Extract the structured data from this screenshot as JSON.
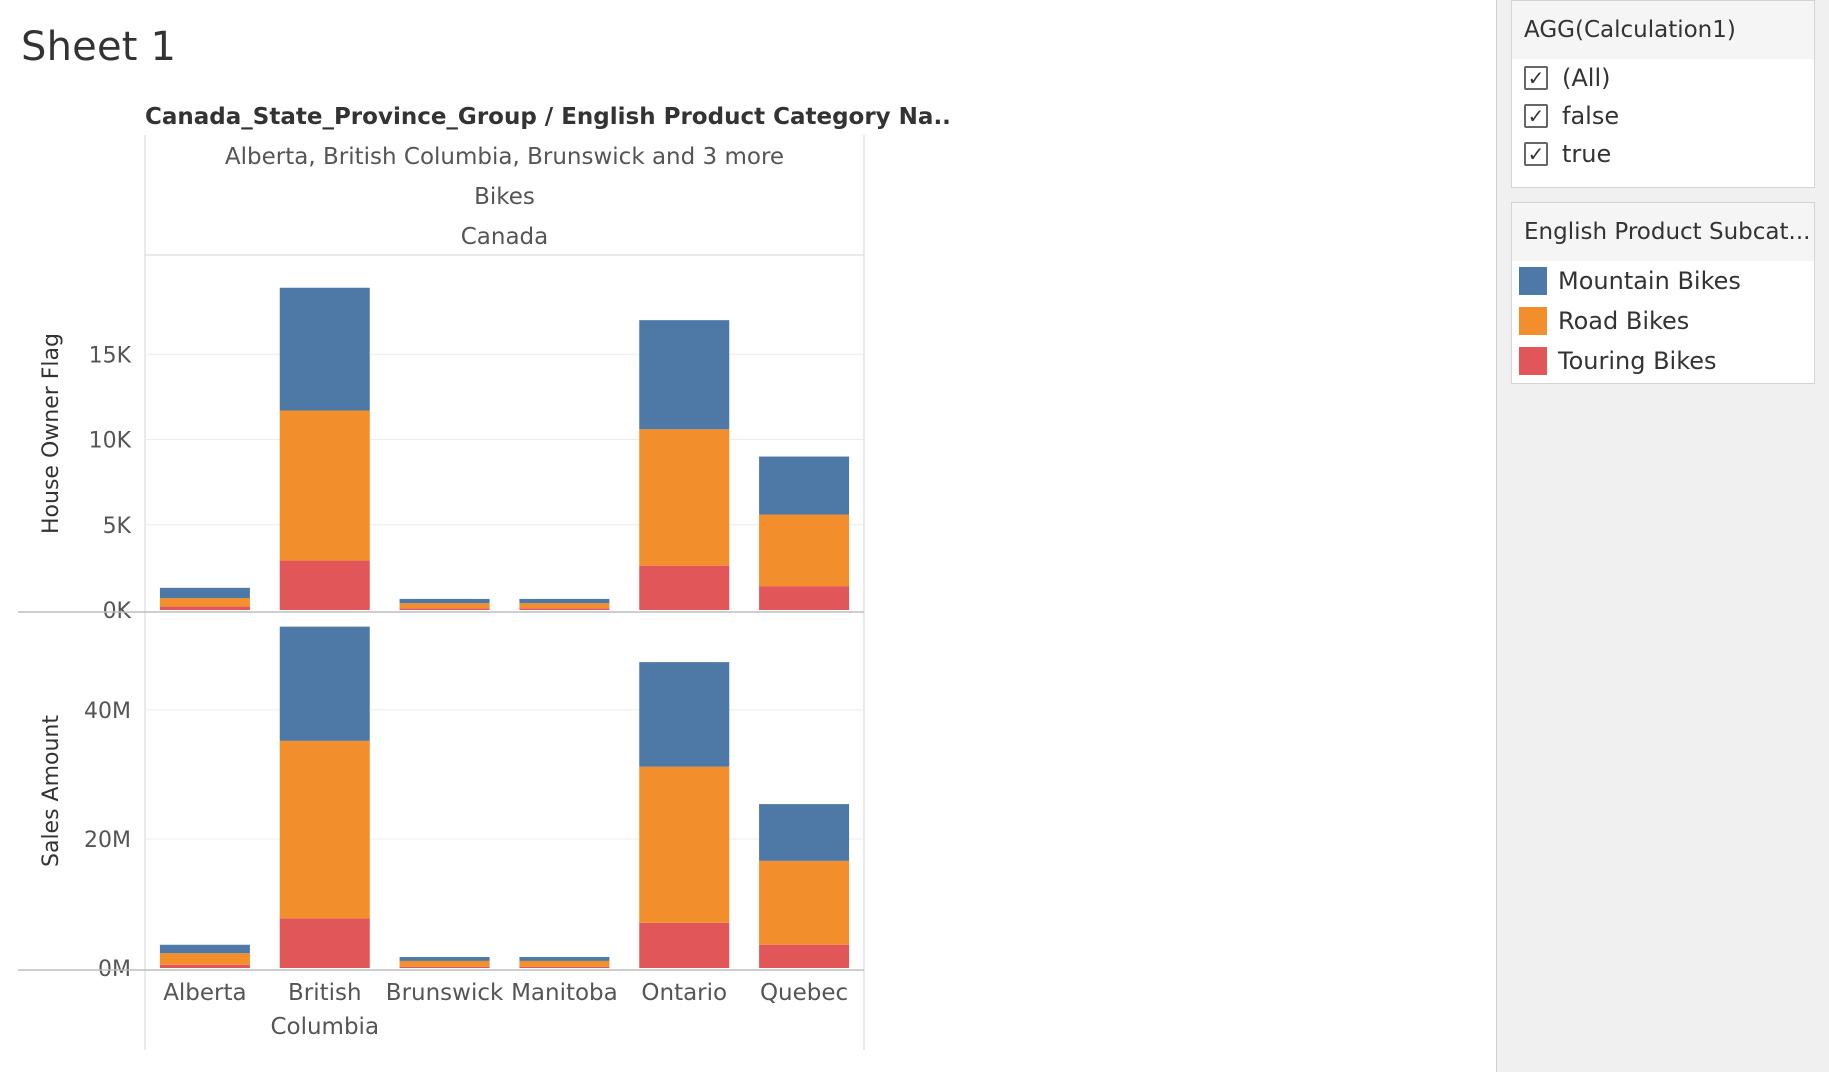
{
  "sheet": {
    "title": "Sheet 1"
  },
  "filter": {
    "title": "AGG(Calculation1)",
    "items": [
      {
        "label": "(All)",
        "checked": true
      },
      {
        "label": "false",
        "checked": true
      },
      {
        "label": "true",
        "checked": true
      }
    ]
  },
  "legend": {
    "title": "English Product Subcat...",
    "items": [
      {
        "label": "Mountain Bikes",
        "color": "#4e79a7"
      },
      {
        "label": "Road Bikes",
        "color": "#f28e2b"
      },
      {
        "label": "Touring Bikes",
        "color": "#e15759"
      }
    ]
  },
  "chart_data": {
    "type": "bar",
    "stacked": true,
    "header_title": "Canada_State_Province_Group / English Product Category Na..",
    "header_rows": [
      "Alberta, British Columbia, Brunswick and 3 more",
      "Bikes",
      "Canada"
    ],
    "categories": [
      "Alberta",
      "British Columbia",
      "Brunswick",
      "Manitoba",
      "Ontario",
      "Quebec"
    ],
    "category_labels": [
      [
        "Alberta"
      ],
      [
        "British",
        "Columbia"
      ],
      [
        "Brunswick"
      ],
      [
        "Manitoba"
      ],
      [
        "Ontario"
      ],
      [
        "Quebec"
      ]
    ],
    "colors": {
      "Mountain Bikes": "#4e79a7",
      "Road Bikes": "#f28e2b",
      "Touring Bikes": "#e15759"
    },
    "panes": [
      {
        "ylabel": "House Owner Flag",
        "ylim": [
          0,
          20000
        ],
        "ticks": [
          0,
          5000,
          10000,
          15000
        ],
        "tick_labels": [
          "0K",
          "5K",
          "10K",
          "15K"
        ],
        "series": [
          {
            "name": "Touring Bikes",
            "values": [
              200,
              2900,
              100,
              100,
              2600,
              1400
            ]
          },
          {
            "name": "Road Bikes",
            "values": [
              500,
              8800,
              300,
              300,
              8000,
              4200
            ]
          },
          {
            "name": "Mountain Bikes",
            "values": [
              600,
              7200,
              250,
              250,
              6400,
              3400
            ]
          }
        ]
      },
      {
        "ylabel": "Sales Amount",
        "ylim": [
          0,
          53000000
        ],
        "ticks": [
          0,
          20000000,
          40000000
        ],
        "tick_labels": [
          "0M",
          "20M",
          "40M"
        ],
        "series": [
          {
            "name": "Touring Bikes",
            "values": [
              500000,
              7700000,
              200000,
              200000,
              7000000,
              3600000
            ]
          },
          {
            "name": "Road Bikes",
            "values": [
              1800000,
              27500000,
              900000,
              900000,
              24200000,
              13000000
            ]
          },
          {
            "name": "Mountain Bikes",
            "values": [
              1300000,
              17700000,
              600000,
              600000,
              16200000,
              8800000
            ]
          }
        ]
      }
    ]
  }
}
